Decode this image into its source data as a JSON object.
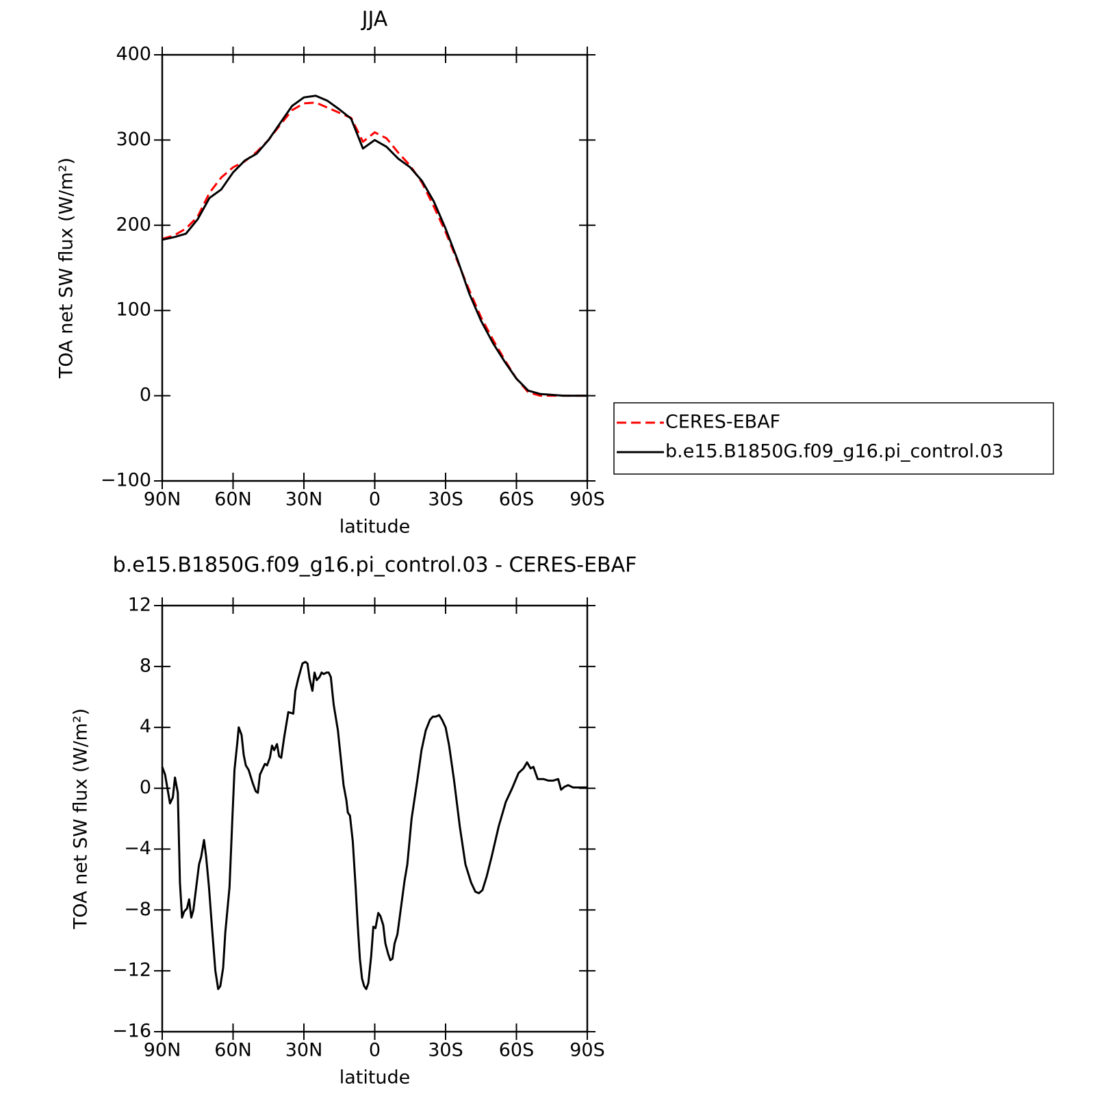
{
  "chart_data": [
    {
      "type": "line",
      "title": "JJA",
      "xlabel": "latitude",
      "ylabel": "TOA net SW flux (W/m²)",
      "xlim": [
        90,
        -90
      ],
      "xticks": [
        {
          "value": 90,
          "label": "90N"
        },
        {
          "value": 60,
          "label": "60N"
        },
        {
          "value": 30,
          "label": "30N"
        },
        0,
        {
          "value": -30,
          "label": "30S"
        },
        {
          "value": -60,
          "label": "60S"
        },
        {
          "value": -90,
          "label": "90S"
        }
      ],
      "ylim": [
        -100,
        400
      ],
      "yticks": [
        {
          "value": -100,
          "label": "−100"
        },
        0,
        100,
        200,
        300,
        400
      ],
      "legend": "right",
      "x": [
        90,
        85,
        80,
        75,
        70,
        65,
        60,
        55,
        50,
        45,
        40,
        35,
        30,
        25,
        20,
        15,
        10,
        5,
        0,
        -5,
        -10,
        -15,
        -20,
        -25,
        -30,
        -35,
        -40,
        -45,
        -50,
        -55,
        -60,
        -65,
        -70,
        -75,
        -80,
        -85,
        -90
      ],
      "series": [
        {
          "name": "CERES-EBAF",
          "color": "#ff0000",
          "dashed": true,
          "values": [
            184,
            188,
            196,
            210,
            238,
            256,
            268,
            275,
            286,
            300,
            318,
            335,
            343,
            344,
            338,
            332,
            326,
            298,
            309,
            302,
            285,
            270,
            250,
            222,
            192,
            158,
            124,
            92,
            66,
            42,
            20,
            4,
            0,
            0,
            0,
            0,
            0
          ]
        },
        {
          "name": "b.e15.B1850G.f09_g16.pi_control.03",
          "color": "#000000",
          "dashed": false,
          "values": [
            183,
            186,
            190,
            207,
            232,
            242,
            262,
            276,
            284,
            300,
            320,
            340,
            350,
            352,
            346,
            336,
            325,
            290,
            300,
            292,
            278,
            268,
            252,
            228,
            196,
            160,
            120,
            88,
            62,
            40,
            20,
            6,
            2,
            1,
            0,
            0,
            0
          ]
        }
      ]
    },
    {
      "type": "line",
      "title": "b.e15.B1850G.f09_g16.pi_control.03 - CERES-EBAF",
      "xlabel": "latitude",
      "ylabel": "TOA net SW flux (W/m²)",
      "xlim": [
        90,
        -90
      ],
      "xticks": [
        {
          "value": 90,
          "label": "90N"
        },
        {
          "value": 60,
          "label": "60N"
        },
        {
          "value": 30,
          "label": "30N"
        },
        0,
        {
          "value": -30,
          "label": "30S"
        },
        {
          "value": -60,
          "label": "60S"
        },
        {
          "value": -90,
          "label": "90S"
        }
      ],
      "ylim": [
        -16,
        12
      ],
      "yticks": [
        {
          "value": -16,
          "label": "−16"
        },
        {
          "value": -12,
          "label": "−12"
        },
        {
          "value": -8,
          "label": "−8"
        },
        {
          "value": -4,
          "label": "−4"
        },
        0,
        4,
        8,
        12
      ],
      "x": [
        90,
        88.8,
        86.7,
        85.5,
        84.6,
        83.4,
        82.5,
        81.6,
        80.7,
        79.5,
        78.6,
        77.7,
        76.8,
        75.6,
        74.4,
        73.5,
        72.3,
        71.4,
        70.2,
        69,
        67.5,
        66.3,
        65.4,
        64.2,
        63.3,
        61.5,
        60.3,
        59.4,
        58.2,
        57.6,
        56.4,
        55.5,
        54.6,
        53.4,
        51.6,
        50.4,
        49.5,
        48.6,
        47.4,
        46.5,
        45.6,
        44.4,
        43.5,
        42.6,
        41.4,
        40.5,
        39.6,
        38.4,
        36.6,
        34.5,
        33.6,
        32.4,
        31.5,
        30.6,
        29.4,
        28.5,
        27.6,
        26.4,
        25.5,
        24.6,
        23.4,
        22.5,
        21.6,
        20.4,
        19.5,
        18.6,
        17.4,
        15.6,
        14.4,
        13.2,
        12,
        11.4,
        10.5,
        9.3,
        8.1,
        7.2,
        6.3,
        5.4,
        4.5,
        3.6,
        2.7,
        1.5,
        0.6,
        -0.3,
        -1.5,
        -2.4,
        -3.6,
        -4.5,
        -5.7,
        -6.6,
        -7.5,
        -8.4,
        -9.6,
        -11.4,
        -12.6,
        -13.8,
        -15.6,
        -18,
        -19.8,
        -21.6,
        -23.4,
        -24.6,
        -25.8,
        -27.3,
        -28.5,
        -30,
        -31.5,
        -33.6,
        -36,
        -38.4,
        -40.8,
        -42.6,
        -44.1,
        -45.6,
        -47.4,
        -49.5,
        -52.5,
        -55.5,
        -58.2,
        -60.9,
        -63,
        -64.5,
        -66,
        -67.2,
        -68.1,
        -69,
        -71.4,
        -73.5,
        -75.6,
        -77.7,
        -78.9,
        -80.4,
        -81.9,
        -84,
        -90
      ],
      "series": [
        {
          "color": "#000000",
          "values": [
            1.4,
            0.9,
            -1.0,
            -0.6,
            0.7,
            -0.3,
            -6.2,
            -8.5,
            -8.1,
            -7.9,
            -7.3,
            -8.5,
            -8.0,
            -6.5,
            -5.0,
            -4.5,
            -3.4,
            -4.5,
            -6.5,
            -9.0,
            -12.0,
            -13.2,
            -13.0,
            -11.8,
            -9.5,
            -6.5,
            -2.0,
            1.2,
            3.0,
            4.0,
            3.5,
            2.2,
            1.5,
            1.2,
            0.3,
            -0.2,
            -0.3,
            0.9,
            1.3,
            1.6,
            1.5,
            2.0,
            2.8,
            2.5,
            2.9,
            2.1,
            2.0,
            3.3,
            5.0,
            4.9,
            6.4,
            7.2,
            7.7,
            8.2,
            8.3,
            8.2,
            7.2,
            6.4,
            7.6,
            7.1,
            7.3,
            7.6,
            7.5,
            7.6,
            7.6,
            7.3,
            5.5,
            3.8,
            2.0,
            0.2,
            -0.8,
            -1.6,
            -1.8,
            -3.5,
            -6.5,
            -9.0,
            -11.2,
            -12.5,
            -13.0,
            -13.2,
            -12.8,
            -11.0,
            -9.1,
            -9.2,
            -8.2,
            -8.4,
            -9.0,
            -10.2,
            -10.9,
            -11.3,
            -11.2,
            -10.2,
            -9.6,
            -7.5,
            -6.1,
            -5.0,
            -2.0,
            0.5,
            2.5,
            3.8,
            4.5,
            4.7,
            4.7,
            4.8,
            4.5,
            4.0,
            2.8,
            0.5,
            -2.5,
            -5.0,
            -6.2,
            -6.8,
            -6.9,
            -6.7,
            -5.8,
            -4.5,
            -2.5,
            -0.9,
            0.0,
            1.0,
            1.3,
            1.7,
            1.3,
            1.4,
            1.0,
            0.6,
            0.6,
            0.5,
            0.5,
            0.6,
            -0.1,
            0.1,
            0.2,
            0.05,
            0.05
          ]
        }
      ]
    }
  ]
}
